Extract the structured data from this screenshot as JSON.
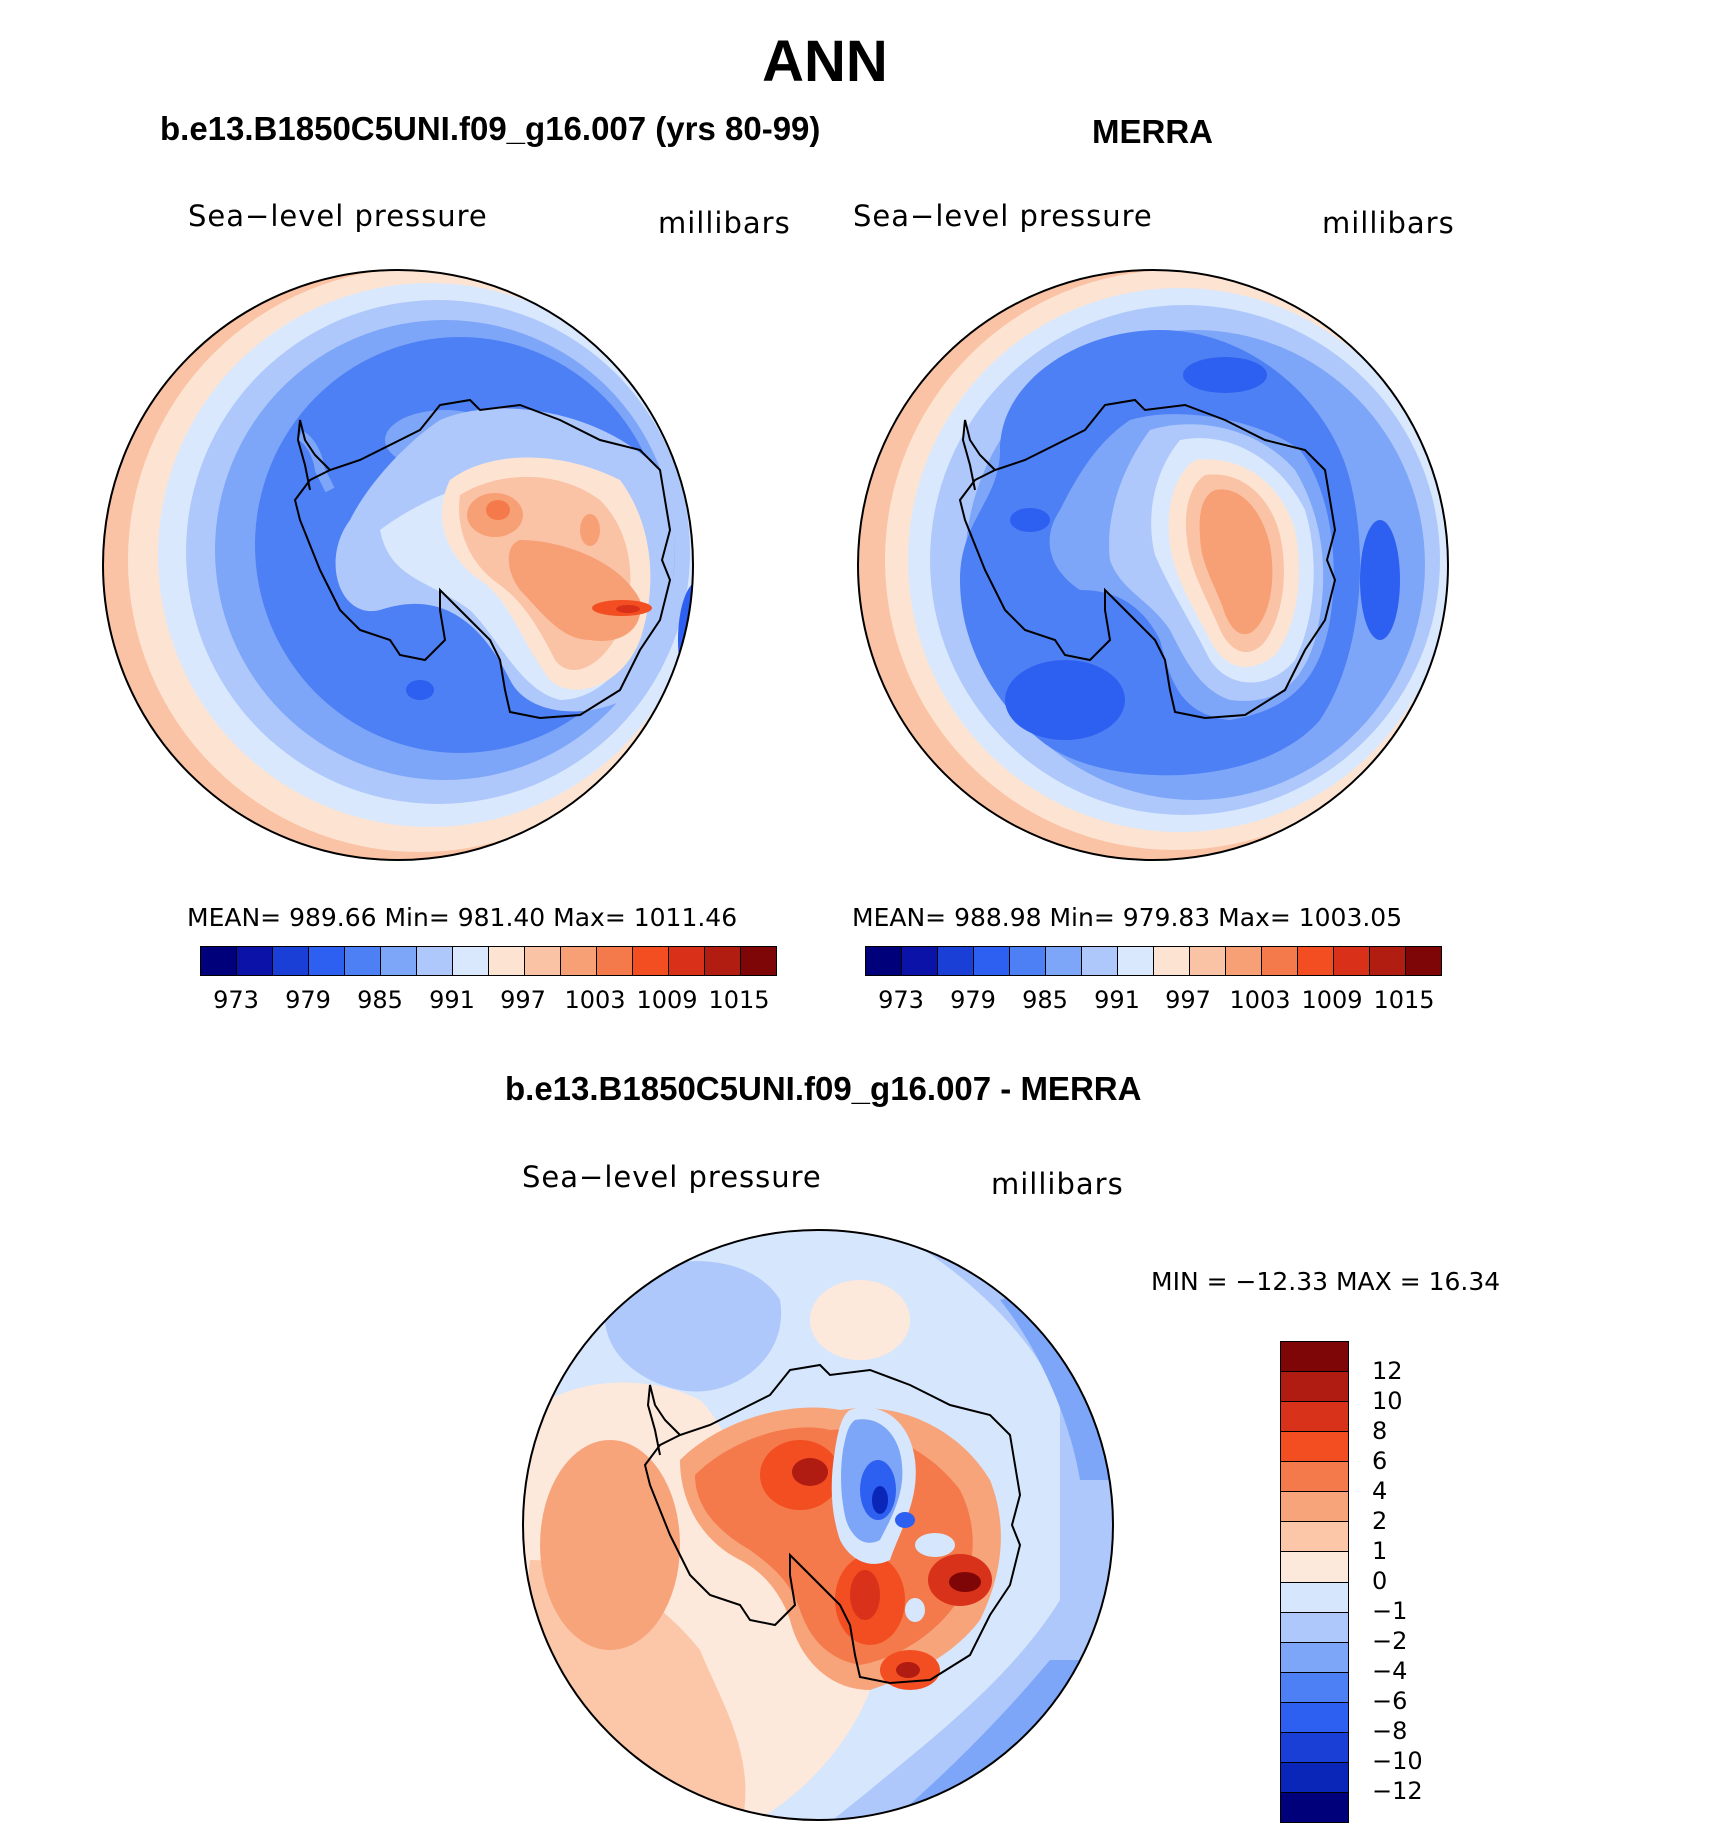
{
  "title": "ANN",
  "panels": [
    {
      "title": "b.e13.B1850C5UNI.f09_g16.007 (yrs 80-99)",
      "variable": "Sea−level pressure",
      "units": "millibars",
      "stats": "MEAN=  989.66   Min=  981.40   Max=  1011.46",
      "ticks": [
        "973",
        "979",
        "985",
        "991",
        "997",
        "1003",
        "1009",
        "1015"
      ]
    },
    {
      "title": "MERRA",
      "variable": "Sea−level pressure",
      "units": "millibars",
      "stats": "MEAN=  988.98   Min=  979.83   Max=  1003.05",
      "ticks": [
        "973",
        "979",
        "985",
        "991",
        "997",
        "1003",
        "1009",
        "1015"
      ]
    }
  ],
  "diff": {
    "title": "b.e13.B1850C5UNI.f09_g16.007 - MERRA",
    "variable": "Sea−level pressure",
    "units": "millibars",
    "stats": "MIN  =  −12.33  MAX  =    16.34",
    "ticks": [
      "12",
      "10",
      "8",
      "6",
      "4",
      "2",
      "1",
      "0",
      "−1",
      "−2",
      "−4",
      "−6",
      "−8",
      "−10",
      "−12"
    ]
  },
  "colors": {
    "abs_scale": [
      "#00007a",
      "#0a12a8",
      "#1a3fd6",
      "#2d5ff0",
      "#4d7ff5",
      "#7ea6f8",
      "#aec8fb",
      "#d9e8fd",
      "#fde4d2",
      "#fbc3a5",
      "#f79f75",
      "#f47a4c",
      "#f24e22",
      "#d9301a",
      "#b21d12",
      "#7f0606"
    ],
    "diff_scale": [
      "#7f0606",
      "#b01c12",
      "#d8321a",
      "#f24e22",
      "#f47a4c",
      "#f7a47b",
      "#fcc7a8",
      "#fde8dc",
      "#d6e6fc",
      "#aec8fb",
      "#7ea6f8",
      "#4d7ff5",
      "#2d5ff0",
      "#1a3fd6",
      "#0a26b8",
      "#00007a"
    ]
  }
}
